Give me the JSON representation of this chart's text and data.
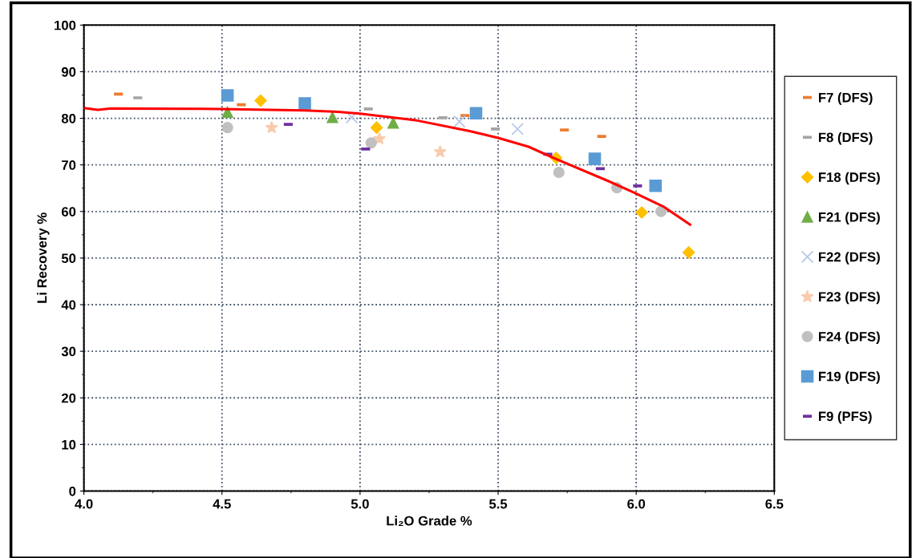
{
  "chart_data": {
    "type": "scatter",
    "xlabel": "Li₂O Grade %",
    "ylabel": "Li Recovery %",
    "xlim": [
      4.0,
      6.5
    ],
    "xticks": [
      {
        "value": 4.0,
        "label": "4.0"
      },
      {
        "value": 4.5,
        "label": "4.5"
      },
      {
        "value": 5.0,
        "label": "5.0"
      },
      {
        "value": 5.5,
        "label": "5.5"
      },
      {
        "value": 6.0,
        "label": "6.0"
      },
      {
        "value": 6.5,
        "label": "6.5"
      }
    ],
    "ylim": [
      0,
      100
    ],
    "yticks": [
      0,
      10,
      20,
      30,
      40,
      50,
      60,
      70,
      80,
      90,
      100
    ],
    "grid": true,
    "legend": "right",
    "series": [
      {
        "name": "F7 (DFS)",
        "color": "#ed7d31",
        "x": [
          4.125,
          4.57,
          5.38,
          5.74,
          5.875
        ],
        "values": [
          85.2,
          82.9,
          80.6,
          77.5,
          76.1
        ]
      },
      {
        "name": "F8 (DFS)",
        "color": "#a5a5a5",
        "x": [
          4.195,
          5.03,
          5.3,
          5.49
        ],
        "values": [
          84.4,
          82.0,
          80.1,
          77.7
        ]
      },
      {
        "name": "F18 (DFS)",
        "color": "#ffc000",
        "marker": "diamond",
        "x": [
          4.64,
          5.06,
          5.71,
          6.02,
          6.19
        ],
        "values": [
          83.8,
          78.0,
          71.5,
          59.8,
          51.2
        ]
      },
      {
        "name": "F21 (DFS)",
        "color": "#70ad47",
        "marker": "triangle",
        "x": [
          4.52,
          4.9,
          5.12
        ],
        "values": [
          81.3,
          80.2,
          79.0
        ]
      },
      {
        "name": "F22 (DFS)",
        "color": "#b4c7e7",
        "marker": "cross",
        "x": [
          4.97,
          5.36,
          5.57
        ],
        "values": [
          80.2,
          79.3,
          77.7
        ]
      },
      {
        "name": "F23 (DFS)",
        "color": "#f8cbad",
        "marker": "star",
        "x": [
          4.68,
          5.07,
          5.29
        ],
        "values": [
          78.0,
          75.6,
          72.8
        ]
      },
      {
        "name": "F24 (DFS)",
        "color": "#c0c0c0",
        "marker": "circle",
        "x": [
          4.52,
          5.04,
          5.72,
          5.93,
          6.09
        ],
        "values": [
          78.0,
          74.7,
          68.4,
          65.1,
          60.0
        ]
      },
      {
        "name": "F19 (DFS)",
        "color": "#5b9bd5",
        "marker": "square",
        "x": [
          4.52,
          4.8,
          5.42,
          5.85,
          6.07
        ],
        "values": [
          84.9,
          83.2,
          81.1,
          71.3,
          65.5
        ]
      },
      {
        "name": "F9 (PFS)",
        "color": "#7030a0",
        "x": [
          4.74,
          5.02,
          5.68,
          5.87,
          6.005
        ],
        "values": [
          78.7,
          73.4,
          72.3,
          69.2,
          65.5
        ]
      },
      {
        "type": "line",
        "color": "#ff0000",
        "marker": "none",
        "line_style": "solid",
        "x": [
          4.0,
          4.05,
          4.1,
          4.5,
          4.8,
          4.92,
          5.0,
          5.2,
          5.4,
          5.5,
          5.61,
          5.7,
          5.9,
          5.99,
          6.1,
          6.195
        ],
        "values": [
          82.2,
          81.8,
          82.1,
          82.0,
          81.7,
          81.4,
          81.0,
          79.6,
          77.2,
          75.8,
          73.9,
          71.5,
          66.5,
          64.1,
          61.0,
          57.2
        ]
      }
    ]
  }
}
